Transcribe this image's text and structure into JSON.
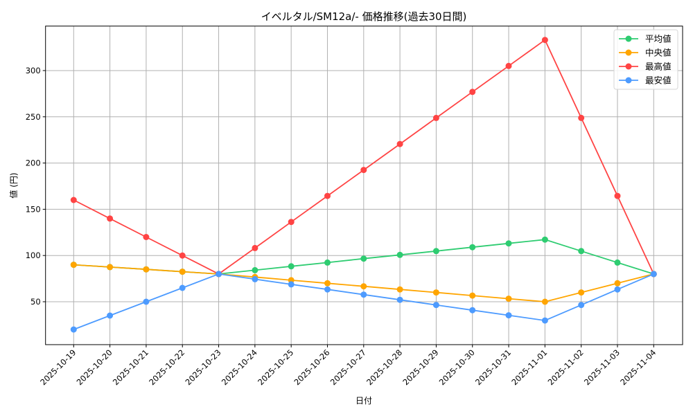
{
  "chart_data": {
    "type": "line",
    "title": "イベルタル/SM12a/- 価格推移(過去30日間)",
    "xlabel": "日付",
    "ylabel": "値 (円)",
    "x": [
      "2025-10-19",
      "2025-10-20",
      "2025-10-21",
      "2025-10-22",
      "2025-10-23",
      "2025-10-24",
      "2025-10-25",
      "2025-10-26",
      "2025-10-27",
      "2025-10-28",
      "2025-10-29",
      "2025-10-30",
      "2025-10-31",
      "2025-11-01",
      "2025-11-02",
      "2025-11-03",
      "2025-11-04"
    ],
    "series": [
      {
        "name": "平均値",
        "color": "#2ecc71",
        "values": [
          90,
          87.5,
          85,
          82.5,
          80,
          84.1,
          88.3,
          92.4,
          96.6,
          100.7,
          104.8,
          109,
          113.1,
          117.2,
          104.8,
          92.4,
          80
        ]
      },
      {
        "name": "中央値",
        "color": "#ffa500",
        "values": [
          90,
          87.5,
          85,
          82.5,
          80,
          76.7,
          73.3,
          70,
          66.7,
          63.3,
          60,
          56.7,
          53.3,
          50,
          60,
          70,
          80
        ]
      },
      {
        "name": "最高値",
        "color": "#ff4444",
        "values": [
          160,
          140,
          120,
          100,
          80,
          108.1,
          136.3,
          164.4,
          192.5,
          220.6,
          248.8,
          276.9,
          305,
          333.1,
          248.8,
          164.4,
          80
        ]
      },
      {
        "name": "最安値",
        "color": "#4d9bff",
        "values": [
          20,
          35,
          50,
          65,
          80,
          74.4,
          68.8,
          63.3,
          57.7,
          52.1,
          46.5,
          40.9,
          35.3,
          29.7,
          46.5,
          63.3,
          80
        ]
      }
    ],
    "yticks": [
      50,
      100,
      150,
      200,
      250,
      300
    ],
    "ylim": [
      3.6,
      348.1
    ],
    "grid": true,
    "legend_position": "upper right"
  }
}
